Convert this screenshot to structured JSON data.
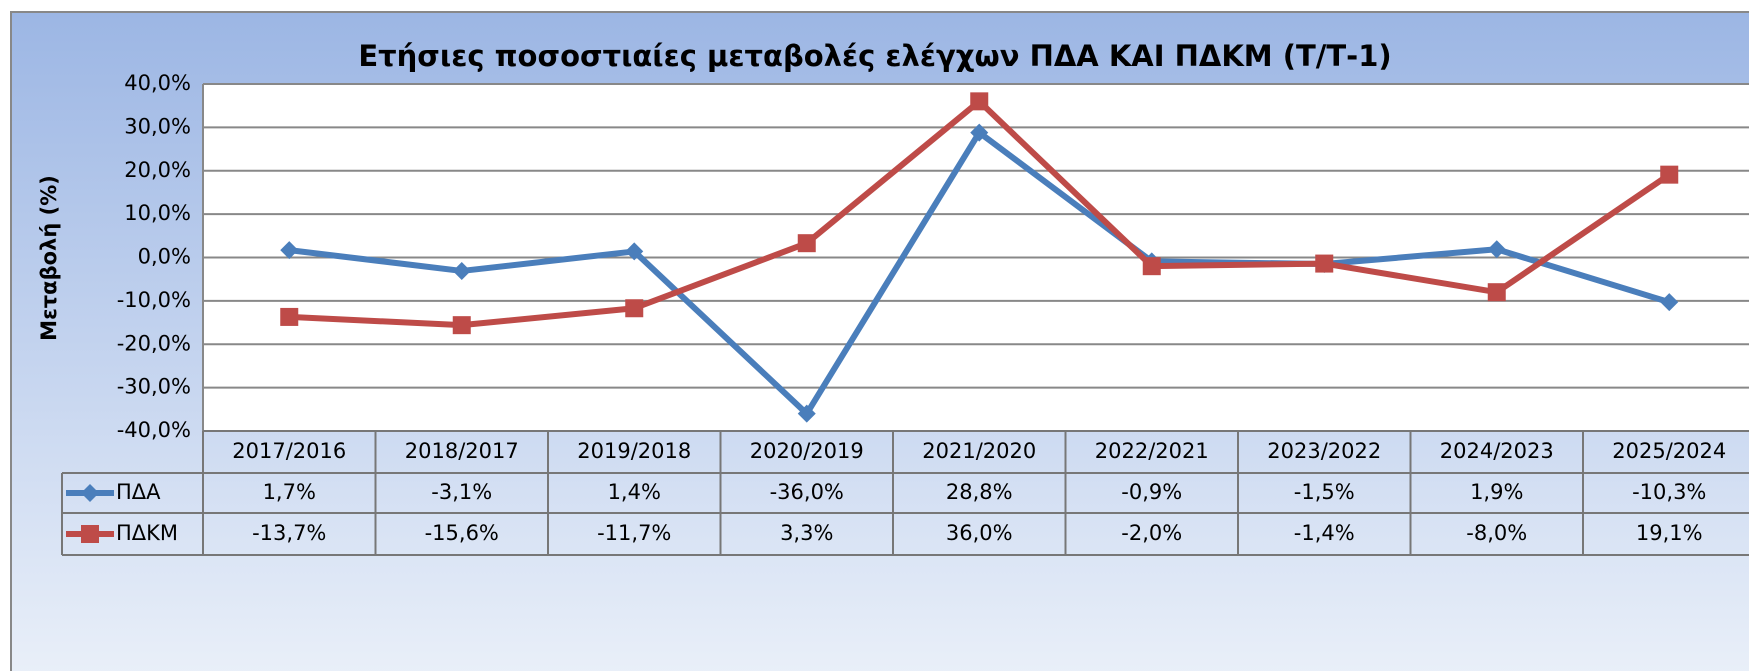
{
  "chart_data": {
    "type": "line",
    "title": "Ετήσιες ποσοστιαίες μεταβολές ελέγχων ΠΔΑ ΚΑΙ ΠΔΚΜ (Τ/Τ-1)",
    "y_label": "Μεταβολή (%)",
    "categories": [
      "2017/2016",
      "2018/2017",
      "2019/2018",
      "2020/2019",
      "2021/2020",
      "2022/2021",
      "2023/2022",
      "2024/2023",
      "2025/2024"
    ],
    "series": [
      {
        "name": "ΠΔΑ",
        "color": "#4a7ebb",
        "marker": "diamond",
        "values": [
          1.7,
          -3.1,
          1.4,
          -36.0,
          28.8,
          -0.9,
          -1.5,
          1.9,
          -10.3
        ],
        "value_labels": [
          "1,7%",
          "-3,1%",
          "1,4%",
          "-36,0%",
          "28,8%",
          "-0,9%",
          "-1,5%",
          "1,9%",
          "-10,3%"
        ]
      },
      {
        "name": "ΠΔΚΜ",
        "color": "#be4b48",
        "marker": "square",
        "values": [
          -13.7,
          -15.6,
          -11.7,
          3.3,
          36.0,
          -2.0,
          -1.4,
          -8.0,
          19.1
        ],
        "value_labels": [
          "-13,7%",
          "-15,6%",
          "-11,7%",
          "3,3%",
          "36,0%",
          "-2,0%",
          "-1,4%",
          "-8,0%",
          "19,1%"
        ]
      }
    ],
    "ylim": [
      -40,
      40
    ],
    "yticks": [
      {
        "value": -40,
        "label": "-40,0%"
      },
      {
        "value": -30,
        "label": "-30,0%"
      },
      {
        "value": -20,
        "label": "-20,0%"
      },
      {
        "value": -10,
        "label": "-10,0%"
      },
      {
        "value": 0,
        "label": "0,0%"
      },
      {
        "value": 10,
        "label": "10,0%"
      },
      {
        "value": 20,
        "label": "20,0%"
      },
      {
        "value": 30,
        "label": "30,0%"
      },
      {
        "value": 40,
        "label": "40,0%"
      }
    ],
    "grid": true,
    "legend": "data-table"
  }
}
